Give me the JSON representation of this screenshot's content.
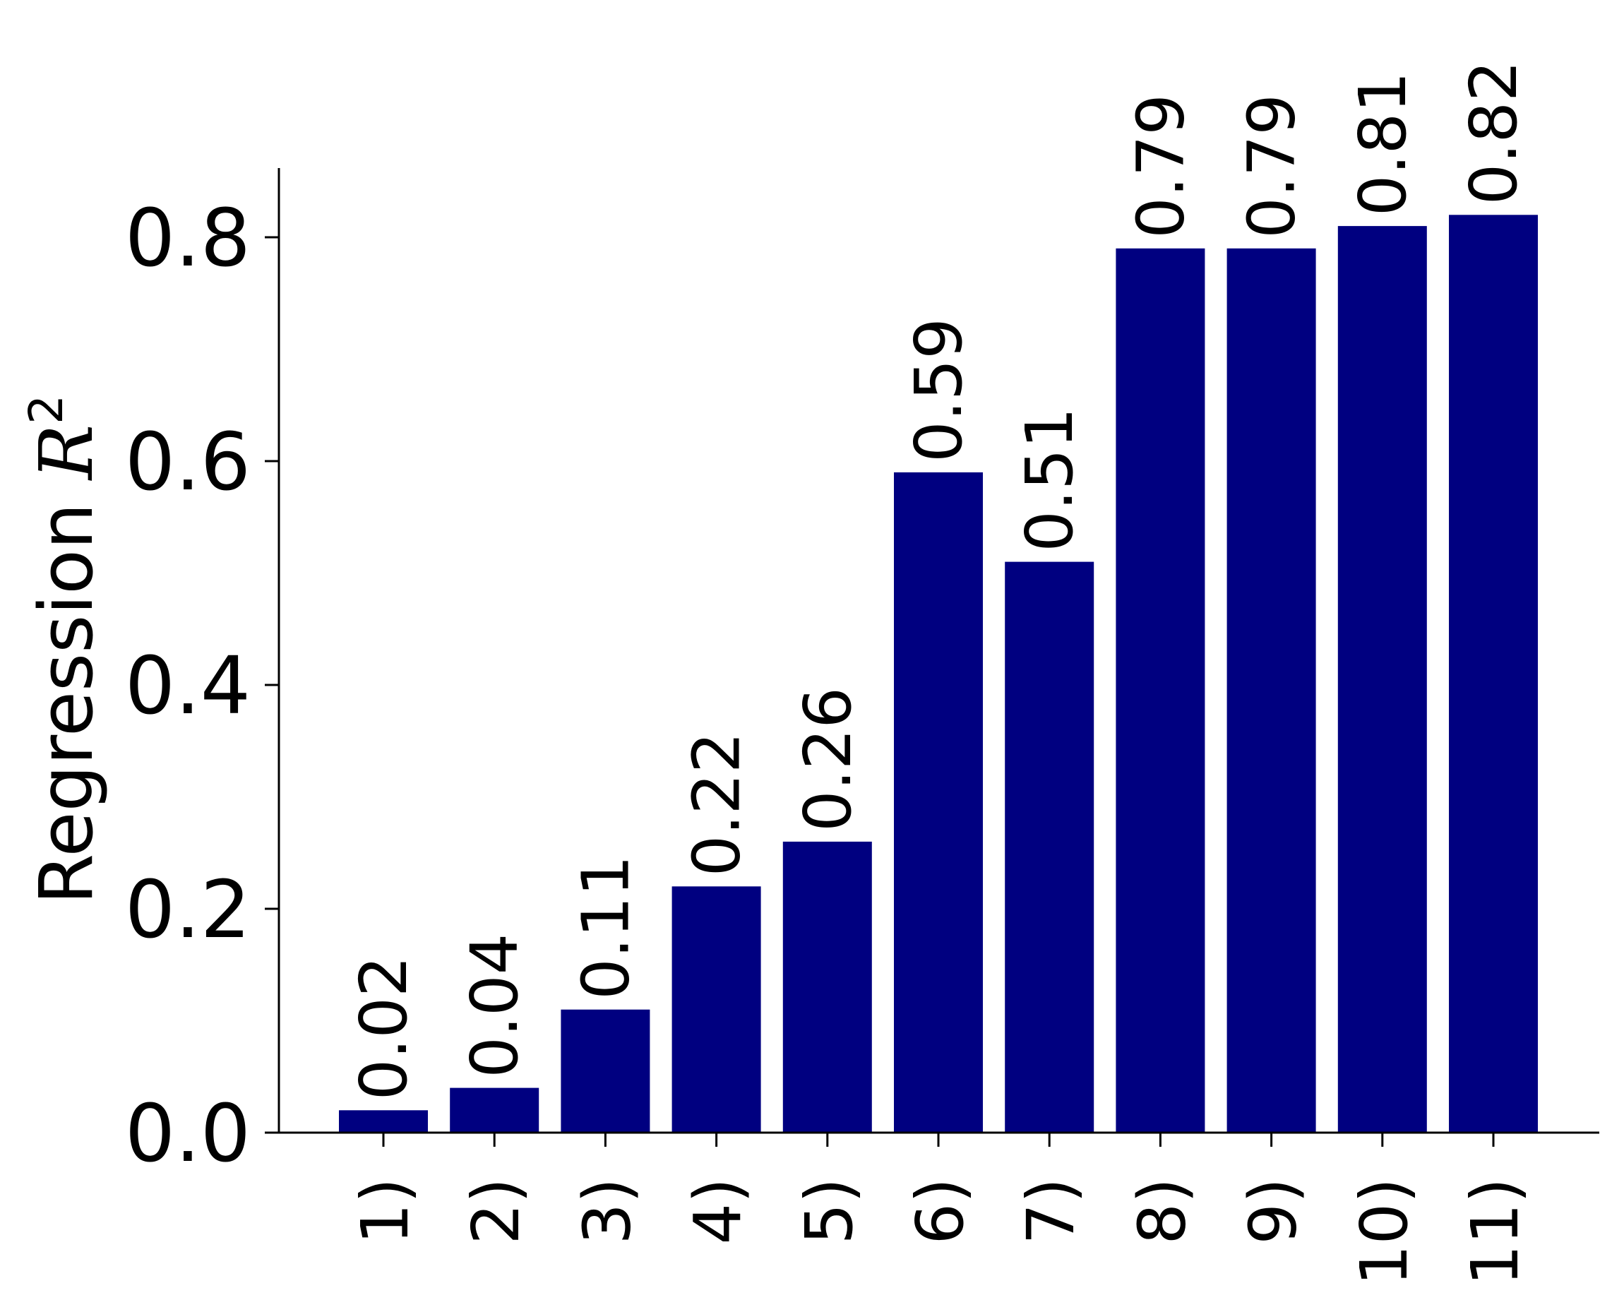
{
  "chart_data": {
    "type": "bar",
    "categories": [
      "1)",
      "2)",
      "3)",
      "4)",
      "5)",
      "6)",
      "7)",
      "8)",
      "9)",
      "10)",
      "11)"
    ],
    "values": [
      0.02,
      0.04,
      0.11,
      0.22,
      0.26,
      0.59,
      0.51,
      0.79,
      0.79,
      0.81,
      0.82
    ],
    "value_labels": [
      "0.02",
      "0.04",
      "0.11",
      "0.22",
      "0.26",
      "0.59",
      "0.51",
      "0.79",
      "0.79",
      "0.81",
      "0.82"
    ],
    "ylabel": {
      "prefix": "Regression ",
      "symbol": "R",
      "exponent": "2"
    },
    "yticks": [
      0.0,
      0.2,
      0.4,
      0.6,
      0.8
    ],
    "ytick_labels": [
      "0.0",
      "0.2",
      "0.4",
      "0.6",
      "0.8"
    ],
    "ylim": [
      0,
      0.86
    ],
    "grid": false,
    "legend": "none",
    "bar_color": "#000080"
  }
}
